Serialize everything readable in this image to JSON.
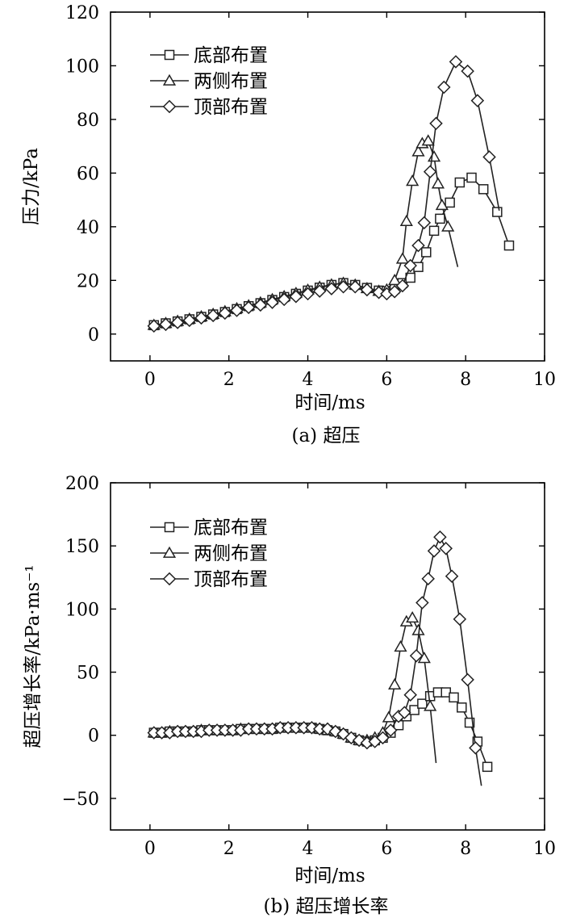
{
  "chart_data": [
    {
      "type": "line",
      "caption": "(a) 超压",
      "xlabel": "时间/ms",
      "ylabel": "压力/kPa",
      "xlim": [
        -1,
        10
      ],
      "ylim": [
        -10,
        120
      ],
      "xticks": [
        0,
        2,
        4,
        6,
        8,
        10
      ],
      "yticks": [
        0,
        20,
        40,
        60,
        80,
        100,
        120
      ],
      "xtick_labels": [
        "0",
        "2",
        "4",
        "6",
        "8",
        "10"
      ],
      "ytick_labels": [
        "0",
        "20",
        "40",
        "60",
        "80",
        "100",
        "120"
      ],
      "legend_position": "top-left",
      "series": [
        {
          "name": "底部布置",
          "marker": "square",
          "x": [
            0.1,
            0.4,
            0.7,
            1.0,
            1.3,
            1.6,
            1.9,
            2.2,
            2.5,
            2.8,
            3.1,
            3.4,
            3.7,
            4.0,
            4.3,
            4.6,
            4.9,
            5.2,
            5.5,
            5.8,
            6.0,
            6.2,
            6.4,
            6.6,
            6.8,
            7.0,
            7.2,
            7.35,
            7.6,
            7.85,
            8.15,
            8.45,
            8.8,
            9.1
          ],
          "y": [
            3.3,
            4.0,
            4.7,
            5.5,
            6.4,
            7.3,
            8.2,
            9.3,
            10.4,
            11.5,
            12.7,
            13.8,
            15.0,
            16.2,
            17.3,
            18.3,
            19.0,
            18.3,
            17.2,
            16.2,
            16.0,
            16.8,
            19.0,
            21.0,
            25.0,
            30.5,
            38.5,
            43.0,
            49.0,
            56.5,
            58.3,
            54.0,
            45.5,
            33.0
          ]
        },
        {
          "name": "两侧布置",
          "marker": "triangle",
          "x": [
            0.1,
            0.4,
            0.7,
            1.0,
            1.3,
            1.6,
            1.9,
            2.2,
            2.5,
            2.8,
            3.1,
            3.4,
            3.7,
            4.0,
            4.3,
            4.6,
            4.9,
            5.2,
            5.5,
            5.8,
            6.0,
            6.2,
            6.4,
            6.5,
            6.65,
            6.8,
            6.9,
            7.05,
            7.2,
            7.3,
            7.4,
            7.55,
            7.8
          ],
          "y": [
            3.3,
            4.0,
            4.8,
            5.6,
            6.5,
            7.4,
            8.4,
            9.5,
            10.6,
            11.7,
            12.9,
            14.0,
            15.2,
            16.4,
            17.5,
            18.4,
            19.0,
            18.3,
            17.0,
            16.0,
            16.5,
            20.0,
            28.0,
            42.0,
            57.0,
            68.0,
            71.0,
            72.0,
            66.0,
            56.0,
            48.0,
            40.0,
            25.0
          ]
        },
        {
          "name": "顶部布置",
          "marker": "diamond",
          "x": [
            0.1,
            0.4,
            0.7,
            1.0,
            1.3,
            1.6,
            1.9,
            2.2,
            2.5,
            2.8,
            3.1,
            3.4,
            3.7,
            4.0,
            4.3,
            4.6,
            4.9,
            5.2,
            5.5,
            5.8,
            6.0,
            6.2,
            6.4,
            6.6,
            6.8,
            6.95,
            7.1,
            7.25,
            7.45,
            7.75,
            8.05,
            8.3,
            8.6,
            8.85
          ],
          "y": [
            3.0,
            3.6,
            4.3,
            5.1,
            6.0,
            6.9,
            7.8,
            8.8,
            9.9,
            10.8,
            11.8,
            12.9,
            14.0,
            15.0,
            16.0,
            16.9,
            17.6,
            17.6,
            16.5,
            15.5,
            15.0,
            15.8,
            18.0,
            25.5,
            33.0,
            41.5,
            60.5,
            78.5,
            92.0,
            101.5,
            98.0,
            87.0,
            66.0,
            46.0
          ]
        }
      ]
    },
    {
      "type": "line",
      "caption": "(b) 超压增长率",
      "xlabel": "时间/ms",
      "ylabel": "超压增长率/kPa·ms⁻¹",
      "xlim": [
        -1,
        10
      ],
      "ylim": [
        -75,
        200
      ],
      "xticks": [
        0,
        2,
        4,
        6,
        8,
        10
      ],
      "yticks": [
        -50,
        0,
        50,
        100,
        150,
        200
      ],
      "xtick_labels": [
        "0",
        "2",
        "4",
        "6",
        "8",
        "10"
      ],
      "ytick_labels": [
        "−50",
        "0",
        "50",
        "100",
        "150",
        "200"
      ],
      "legend_position": "top-left",
      "series": [
        {
          "name": "底部布置",
          "marker": "square",
          "x": [
            0.1,
            0.3,
            0.5,
            0.7,
            0.9,
            1.1,
            1.3,
            1.5,
            1.7,
            1.9,
            2.1,
            2.3,
            2.5,
            2.7,
            2.9,
            3.1,
            3.3,
            3.5,
            3.7,
            3.9,
            4.1,
            4.3,
            4.5,
            4.7,
            4.9,
            5.1,
            5.3,
            5.5,
            5.7,
            5.9,
            6.1,
            6.3,
            6.5,
            6.7,
            6.9,
            7.1,
            7.3,
            7.5,
            7.7,
            7.9,
            8.1,
            8.3,
            8.55
          ],
          "y": [
            2,
            2,
            3,
            3,
            3,
            3,
            4,
            4,
            4,
            4,
            4,
            5,
            5,
            5,
            5,
            5,
            6,
            6,
            6,
            6,
            6,
            5,
            4,
            3,
            1,
            -2,
            -4,
            -5,
            -4,
            -2,
            2,
            8,
            15,
            20,
            25,
            31,
            34,
            34,
            30,
            22,
            10,
            -5,
            -25
          ]
        },
        {
          "name": "两侧布置",
          "marker": "triangle",
          "x": [
            0.1,
            0.3,
            0.5,
            0.7,
            0.9,
            1.1,
            1.3,
            1.5,
            1.7,
            1.9,
            2.1,
            2.3,
            2.5,
            2.7,
            2.9,
            3.1,
            3.3,
            3.5,
            3.7,
            3.9,
            4.1,
            4.3,
            4.5,
            4.7,
            4.9,
            5.1,
            5.3,
            5.5,
            5.7,
            5.9,
            6.05,
            6.2,
            6.35,
            6.5,
            6.65,
            6.8,
            6.95,
            7.1,
            7.25
          ],
          "y": [
            2,
            2,
            3,
            3,
            3,
            3,
            4,
            4,
            4,
            4,
            4,
            5,
            5,
            5,
            5,
            5,
            6,
            6,
            6,
            6,
            6,
            5,
            4,
            3,
            1,
            -2,
            -4,
            -4,
            -2,
            2,
            14,
            40,
            70,
            90,
            93,
            83,
            61,
            23,
            -22
          ]
        },
        {
          "name": "顶部布置",
          "marker": "diamond",
          "x": [
            0.1,
            0.3,
            0.5,
            0.7,
            0.9,
            1.1,
            1.3,
            1.5,
            1.7,
            1.9,
            2.1,
            2.3,
            2.5,
            2.7,
            2.9,
            3.1,
            3.3,
            3.5,
            3.7,
            3.9,
            4.1,
            4.3,
            4.5,
            4.7,
            4.9,
            5.1,
            5.3,
            5.5,
            5.7,
            5.9,
            6.1,
            6.3,
            6.45,
            6.6,
            6.75,
            6.9,
            7.05,
            7.2,
            7.35,
            7.5,
            7.65,
            7.85,
            8.05,
            8.25,
            8.4
          ],
          "y": [
            2,
            2,
            2,
            3,
            3,
            3,
            3,
            4,
            4,
            4,
            4,
            4,
            5,
            5,
            5,
            5,
            6,
            6,
            6,
            6,
            6,
            5,
            5,
            3,
            1,
            -2,
            -4,
            -6,
            -5,
            -2,
            4,
            15,
            18,
            32,
            63,
            105,
            124,
            146,
            157,
            148,
            126,
            92,
            44,
            -10,
            -40
          ]
        }
      ]
    }
  ]
}
